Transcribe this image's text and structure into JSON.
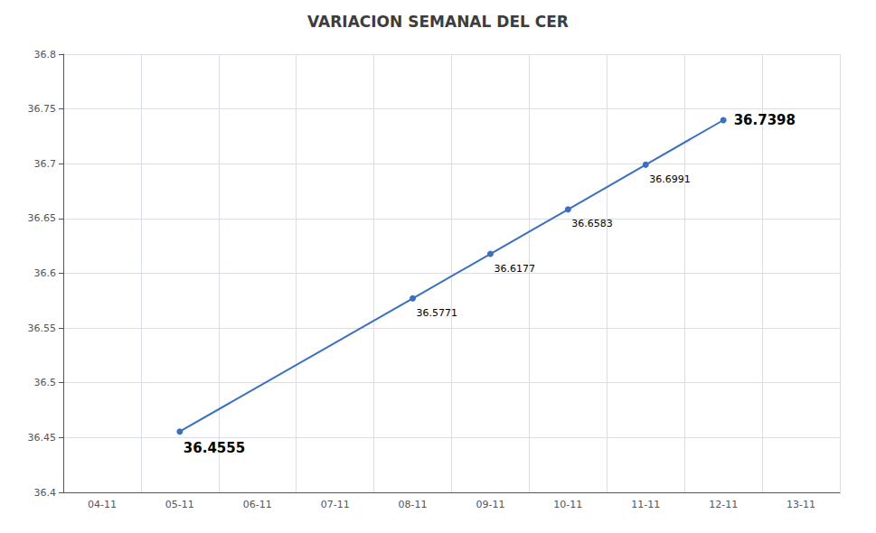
{
  "chart_data": {
    "type": "line",
    "title": "VARIACION SEMANAL DEL CER",
    "categories": [
      "04-11",
      "05-11",
      "06-11",
      "07-11",
      "08-11",
      "09-11",
      "10-11",
      "11-11",
      "12-11",
      "13-11"
    ],
    "values": [
      null,
      36.4555,
      null,
      null,
      36.5771,
      36.6177,
      36.6583,
      36.6991,
      36.7398,
      null
    ],
    "color": "#3A70C0",
    "marker": "circle",
    "ylim": [
      36.4,
      36.8
    ],
    "yticks": [
      36.4,
      36.45,
      36.5,
      36.55,
      36.6,
      36.65,
      36.7,
      36.75,
      36.8
    ],
    "grid": true,
    "data_labels": true
  }
}
